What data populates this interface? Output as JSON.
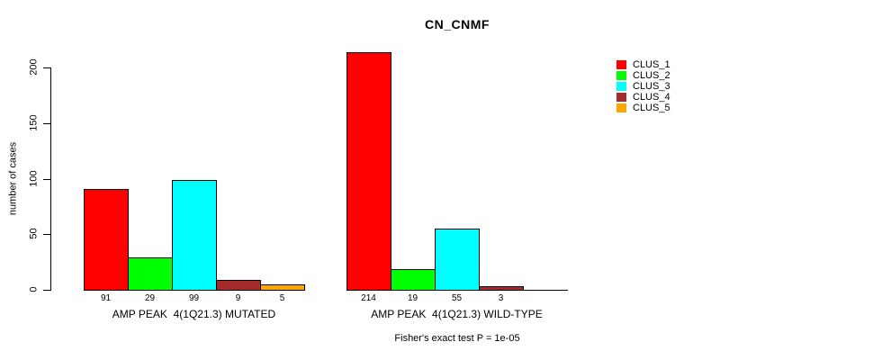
{
  "chart_data": {
    "type": "bar",
    "title": "CN_CNMF",
    "xlabel": "",
    "ylabel": "number of cases",
    "ylim": [
      0,
      220
    ],
    "yticks": [
      0,
      50,
      100,
      150,
      200
    ],
    "grid": false,
    "legend_position": "top-right",
    "categories": [
      "AMP PEAK  4(1Q21.3) MUTATED",
      "AMP PEAK  4(1Q21.3) WILD-TYPE"
    ],
    "series": [
      {
        "name": "CLUS_1",
        "color": "#FF0000",
        "values": [
          91,
          214
        ]
      },
      {
        "name": "CLUS_2",
        "color": "#00FF00",
        "values": [
          29,
          19
        ]
      },
      {
        "name": "CLUS_3",
        "color": "#00FFFF",
        "values": [
          99,
          55
        ]
      },
      {
        "name": "CLUS_4",
        "color": "#A52A2A",
        "values": [
          9,
          3
        ]
      },
      {
        "name": "CLUS_5",
        "color": "#FFA500",
        "values": [
          5,
          0
        ]
      }
    ],
    "bar_value_labels": [
      [
        "91",
        "29",
        "99",
        "9",
        "5"
      ],
      [
        "214",
        "19",
        "55",
        "3",
        ""
      ]
    ],
    "note": "Fisher's exact test P = 1e-05"
  }
}
